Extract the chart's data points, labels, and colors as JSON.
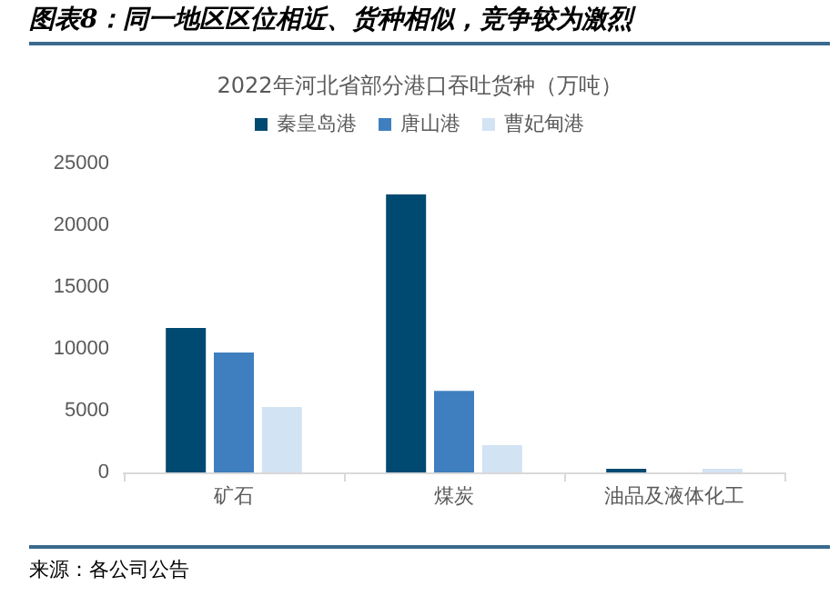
{
  "chart_data": {
    "type": "bar",
    "title": "2022年河北省部分港口吞吐货种（万吨）",
    "categories": [
      "矿石",
      "煤炭",
      "油品及液体化工"
    ],
    "series": [
      {
        "name": "秦皇岛港",
        "color": "#004a72",
        "values": [
          11700,
          22500,
          300
        ]
      },
      {
        "name": "唐山港",
        "color": "#3f7fbf",
        "values": [
          9700,
          6600,
          null
        ]
      },
      {
        "name": "曹妃甸港",
        "color": "#d2e3f3",
        "values": [
          5300,
          2200,
          300
        ]
      }
    ],
    "ylim": [
      0,
      25000
    ],
    "yticks": [
      0,
      5000,
      10000,
      15000,
      20000,
      25000
    ],
    "grid": false,
    "legend": "top",
    "annotations": [
      "图表8：同一地区区位相近、货种相似，竞争较为激烈",
      "来源：各公司公告"
    ]
  }
}
